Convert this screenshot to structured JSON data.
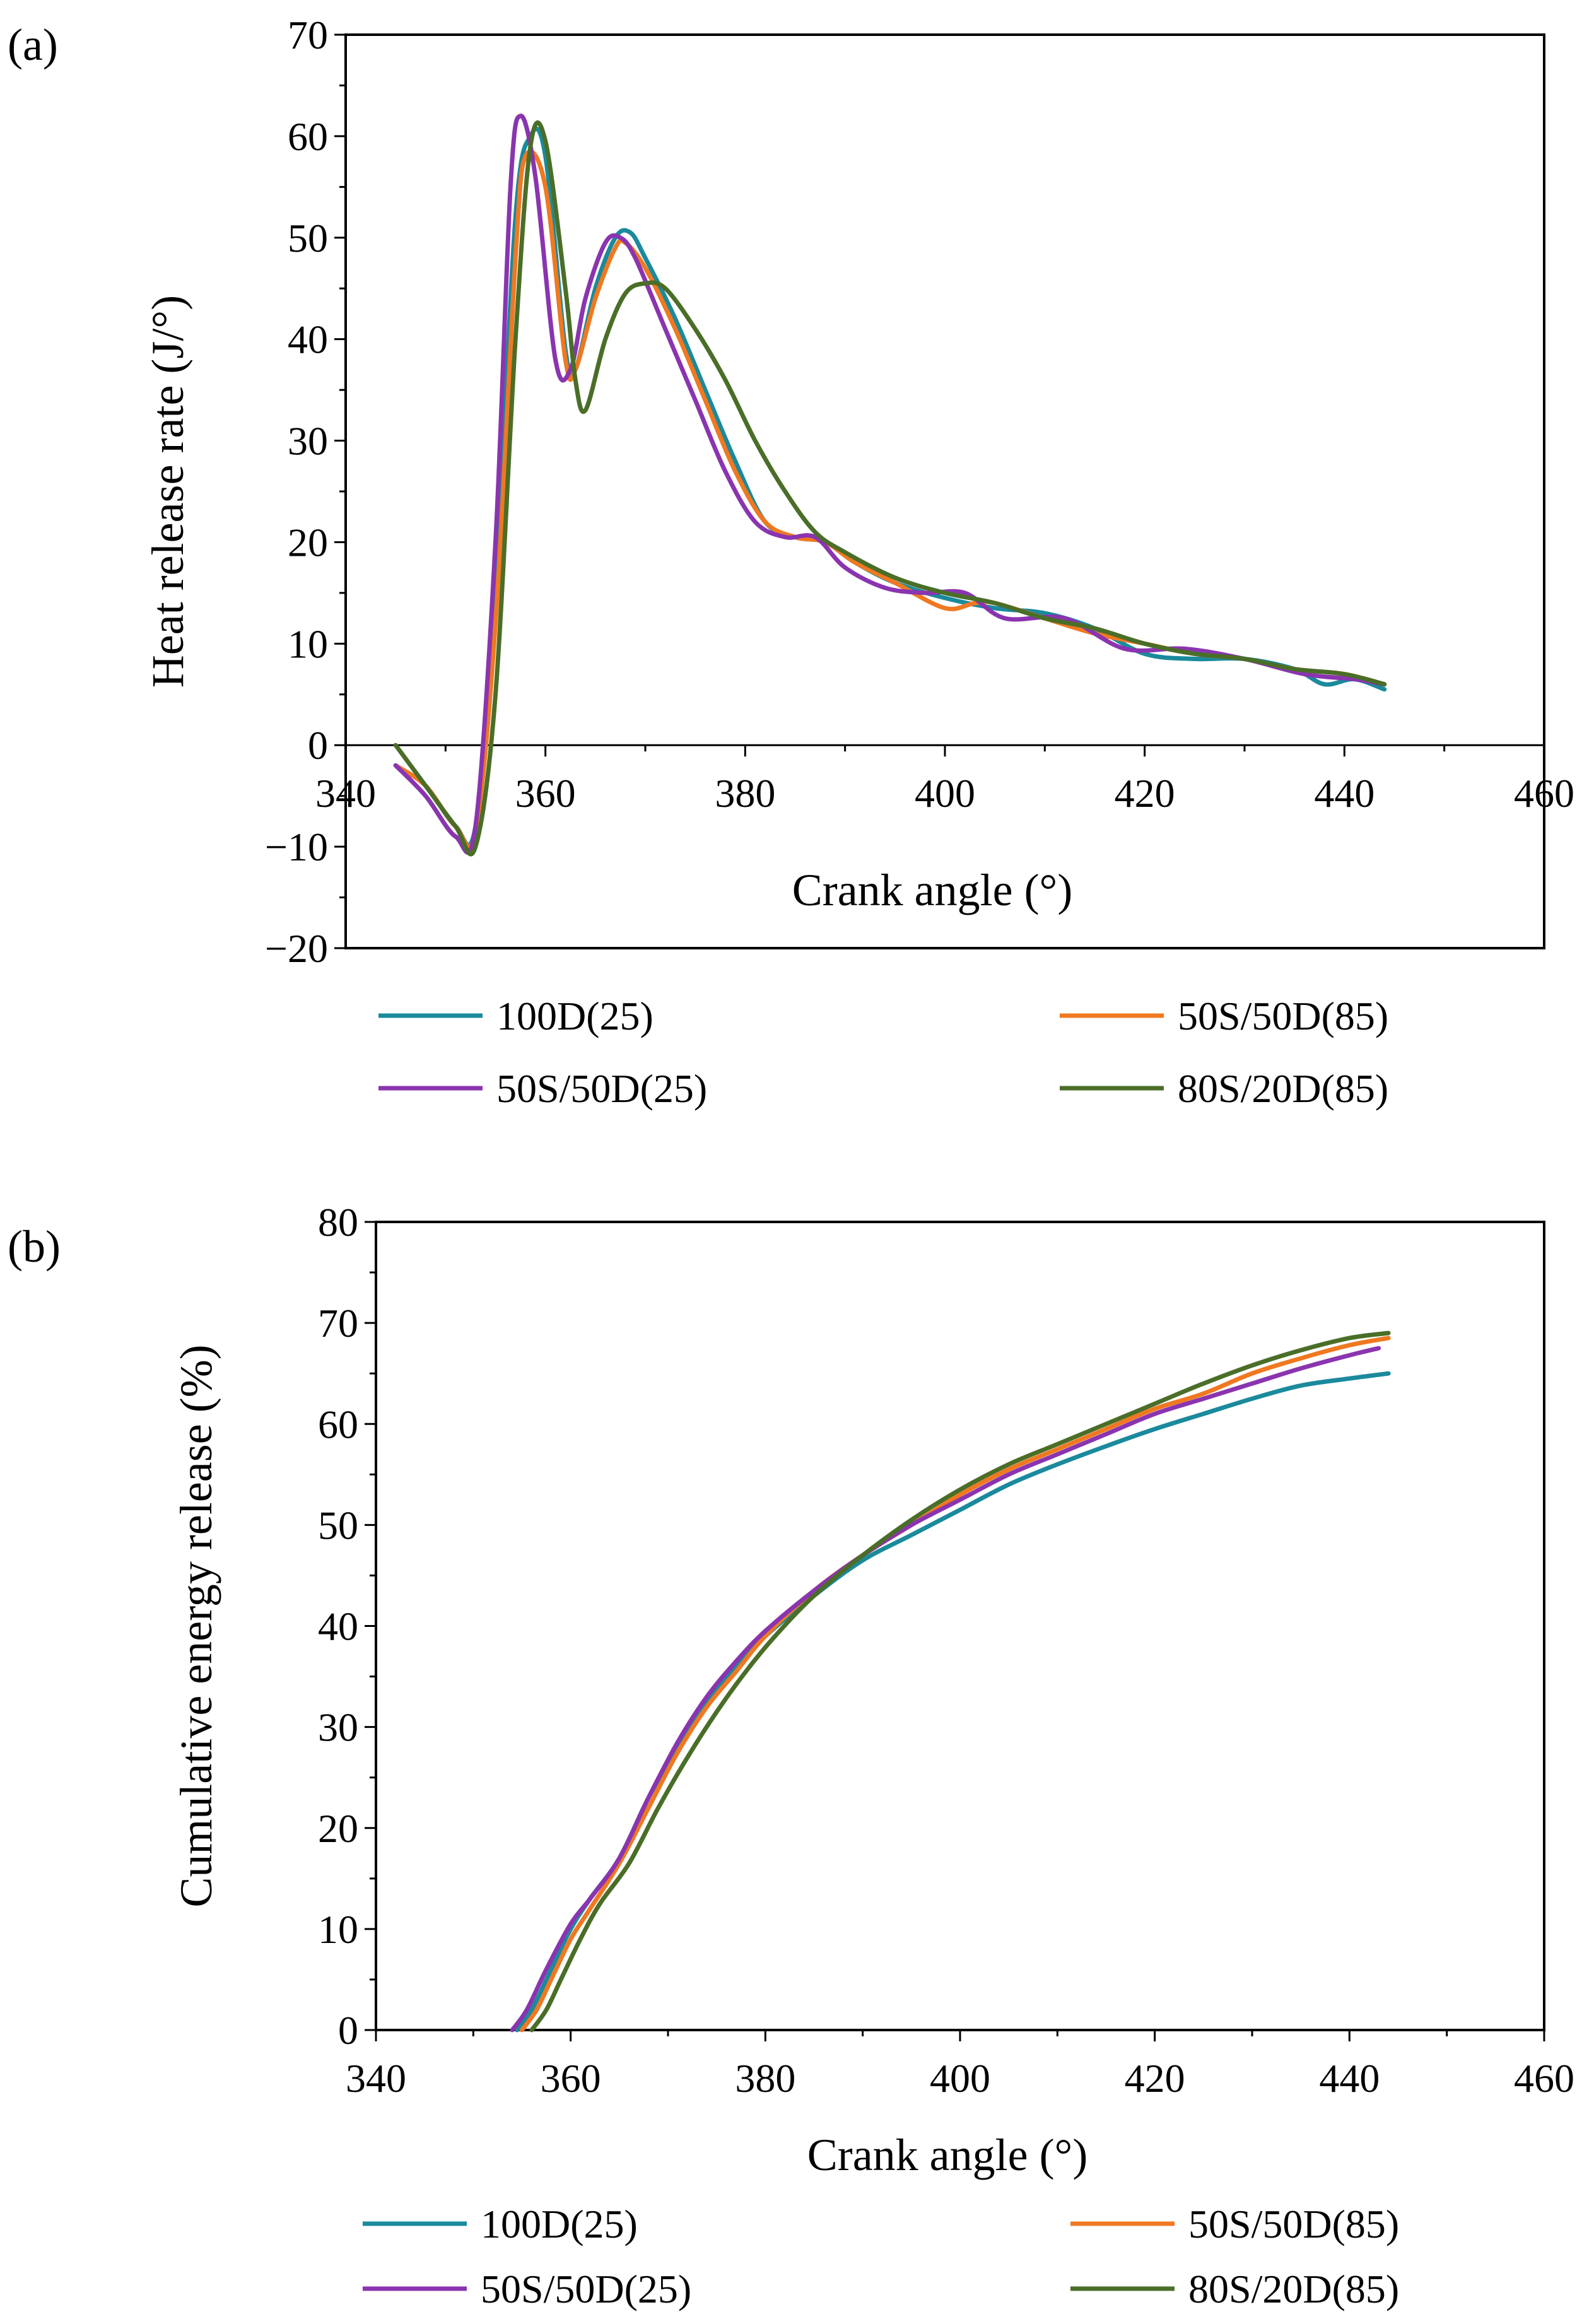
{
  "colors": {
    "100D(25)": "#1a8a9c",
    "50S/50D(85)": "#f07820",
    "50S/50D(25)": "#8a34b0",
    "80S/20D(85)": "#4a6e28"
  },
  "chart_data": [
    {
      "panel_label": "(a)",
      "type": "line",
      "title": "",
      "xlabel": "Crank angle (°)",
      "ylabel": "Heat release rate (J/°)",
      "xlim": [
        340,
        460
      ],
      "ylim": [
        -20,
        70
      ],
      "xticks": [
        340,
        360,
        380,
        400,
        420,
        440,
        460
      ],
      "yticks": [
        -20,
        -10,
        0,
        10,
        20,
        30,
        40,
        50,
        60,
        70
      ],
      "xtick_labels": [
        "340",
        "360",
        "380",
        "400",
        "420",
        "440",
        "460"
      ],
      "ytick_labels": [
        "−20",
        "−10",
        "0",
        "10",
        "20",
        "30",
        "40",
        "50",
        "60",
        "70"
      ],
      "legend_position": "below",
      "series": [
        {
          "name": "100D(25)",
          "x": [
            345,
            348,
            351,
            353,
            355,
            357,
            358.5,
            360,
            362,
            363,
            365,
            367,
            368.5,
            370,
            373,
            376,
            379,
            382,
            385,
            388,
            391,
            395,
            400,
            405,
            410,
            415,
            420,
            425,
            430,
            435,
            438,
            441,
            444
          ],
          "y": [
            -2,
            -4,
            -8,
            -8,
            15,
            52,
            60,
            58,
            39,
            37,
            45,
            50,
            50.5,
            48,
            42,
            35,
            28,
            22,
            20.5,
            20,
            18,
            16,
            14.5,
            13.5,
            13,
            11.5,
            9,
            8.5,
            8.5,
            7.5,
            6,
            6.5,
            5.5
          ]
        },
        {
          "name": "50S/50D(85)",
          "x": [
            345,
            348,
            351,
            353,
            355,
            357,
            358,
            360,
            362,
            363,
            365,
            367,
            368,
            370,
            373,
            376,
            379,
            382,
            385,
            388,
            391,
            395,
            400,
            403,
            405,
            410,
            415,
            420,
            425,
            430,
            435,
            440,
            444
          ],
          "y": [
            -2,
            -4,
            -8,
            -8.5,
            12,
            48,
            58,
            55,
            38,
            37,
            44,
            49,
            49.5,
            47,
            41,
            34,
            27,
            22,
            20.5,
            20,
            18,
            16,
            13.5,
            14,
            14,
            12.5,
            11,
            10,
            9,
            8.5,
            7.5,
            7,
            6
          ]
        },
        {
          "name": "50S/50D(25)",
          "x": [
            345,
            348,
            351,
            353,
            355,
            356.5,
            357.5,
            359,
            361,
            362.5,
            364,
            366,
            367.5,
            369,
            372,
            375,
            378,
            381,
            384,
            387,
            390,
            394,
            398,
            402,
            406,
            412,
            418,
            424,
            430,
            436,
            441,
            444
          ],
          "y": [
            -2,
            -5,
            -9,
            -8,
            20,
            55,
            62,
            56,
            38,
            37,
            44,
            49.5,
            50,
            48,
            41,
            34,
            27,
            22,
            20.5,
            20.5,
            17.5,
            15.5,
            15,
            15,
            12.5,
            12.5,
            9.5,
            9.5,
            8.5,
            7,
            6.5,
            6
          ]
        },
        {
          "name": "80S/20D(85)",
          "x": [
            345,
            348,
            351,
            353,
            355,
            357,
            358.5,
            360,
            362,
            363,
            364,
            366,
            368,
            370,
            372,
            375,
            378,
            381,
            384,
            387,
            390,
            395,
            400,
            405,
            410,
            415,
            420,
            425,
            430,
            435,
            440,
            444
          ],
          "y": [
            0,
            -4,
            -8,
            -10,
            5,
            40,
            59,
            59.5,
            45,
            36,
            33,
            40,
            44.5,
            45.5,
            45,
            41,
            36,
            30,
            25,
            21,
            19,
            16.5,
            15,
            14,
            12.5,
            11.5,
            10,
            9,
            8.5,
            7.5,
            7,
            6
          ]
        }
      ]
    },
    {
      "panel_label": "(b)",
      "type": "line",
      "title": "",
      "xlabel": "Crank angle (°)",
      "ylabel": "Cumulative energy release (%)",
      "xlim": [
        340,
        460
      ],
      "ylim": [
        0,
        80
      ],
      "xticks": [
        340,
        360,
        380,
        400,
        420,
        440,
        460
      ],
      "yticks": [
        0,
        10,
        20,
        30,
        40,
        50,
        60,
        70,
        80
      ],
      "xtick_labels": [
        "340",
        "360",
        "380",
        "400",
        "420",
        "440",
        "460"
      ],
      "ytick_labels": [
        "0",
        "10",
        "20",
        "30",
        "40",
        "50",
        "60",
        "70",
        "80"
      ],
      "legend_position": "below",
      "series": [
        {
          "name": "100D(25)",
          "x": [
            354.5,
            356,
            358,
            360,
            362,
            365,
            368,
            371,
            374,
            377,
            380,
            385,
            390,
            395,
            400,
            405,
            410,
            415,
            420,
            425,
            430,
            435,
            440,
            444
          ],
          "y": [
            0,
            2,
            6,
            10,
            13,
            17,
            23,
            28,
            32.5,
            36,
            39,
            43,
            46.5,
            49,
            51.5,
            54,
            56,
            57.8,
            59.5,
            61,
            62.5,
            63.8,
            64.5,
            65
          ]
        },
        {
          "name": "50S/50D(85)",
          "x": [
            355,
            356.5,
            358,
            360,
            362,
            365,
            368,
            371,
            374,
            377,
            380,
            385,
            390,
            395,
            400,
            405,
            410,
            415,
            420,
            425,
            430,
            435,
            440,
            444
          ],
          "y": [
            0,
            2,
            5,
            9,
            12,
            16.5,
            22,
            27.5,
            32,
            35.5,
            39,
            43.5,
            47,
            50,
            53,
            55.5,
            57.5,
            59.5,
            61.5,
            63,
            65,
            66.5,
            67.8,
            68.5
          ]
        },
        {
          "name": "50S/50D(25)",
          "x": [
            354,
            355.5,
            357.5,
            360,
            362,
            365,
            368,
            371,
            374,
            377,
            380,
            385,
            390,
            395,
            400,
            405,
            410,
            415,
            420,
            425,
            430,
            435,
            440,
            443
          ],
          "y": [
            0,
            2,
            6,
            10.5,
            13,
            17,
            23,
            28.5,
            33,
            36.5,
            39.5,
            43.5,
            47,
            50,
            52.5,
            55,
            57,
            59,
            61,
            62.5,
            64,
            65.5,
            66.8,
            67.5
          ]
        },
        {
          "name": "80S/20D(85)",
          "x": [
            356,
            357.5,
            359,
            361,
            363,
            366,
            369,
            372,
            375,
            378,
            381,
            385,
            390,
            395,
            400,
            405,
            410,
            415,
            420,
            425,
            430,
            435,
            440,
            444
          ],
          "y": [
            0,
            2,
            5,
            9,
            12.5,
            16.5,
            22,
            27,
            31.5,
            35.5,
            39,
            43,
            47,
            50.5,
            53.5,
            56,
            58,
            60,
            62,
            64,
            65.8,
            67.3,
            68.5,
            69
          ]
        }
      ]
    }
  ],
  "legend": {
    "items": [
      {
        "name": "100D(25)",
        "label": "100D(25)"
      },
      {
        "name": "50S/50D(85)",
        "label": "50S/50D(85)"
      },
      {
        "name": "50S/50D(25)",
        "label": "50S/50D(25)"
      },
      {
        "name": "80S/20D(85)",
        "label": "80S/20D(85)"
      }
    ]
  }
}
